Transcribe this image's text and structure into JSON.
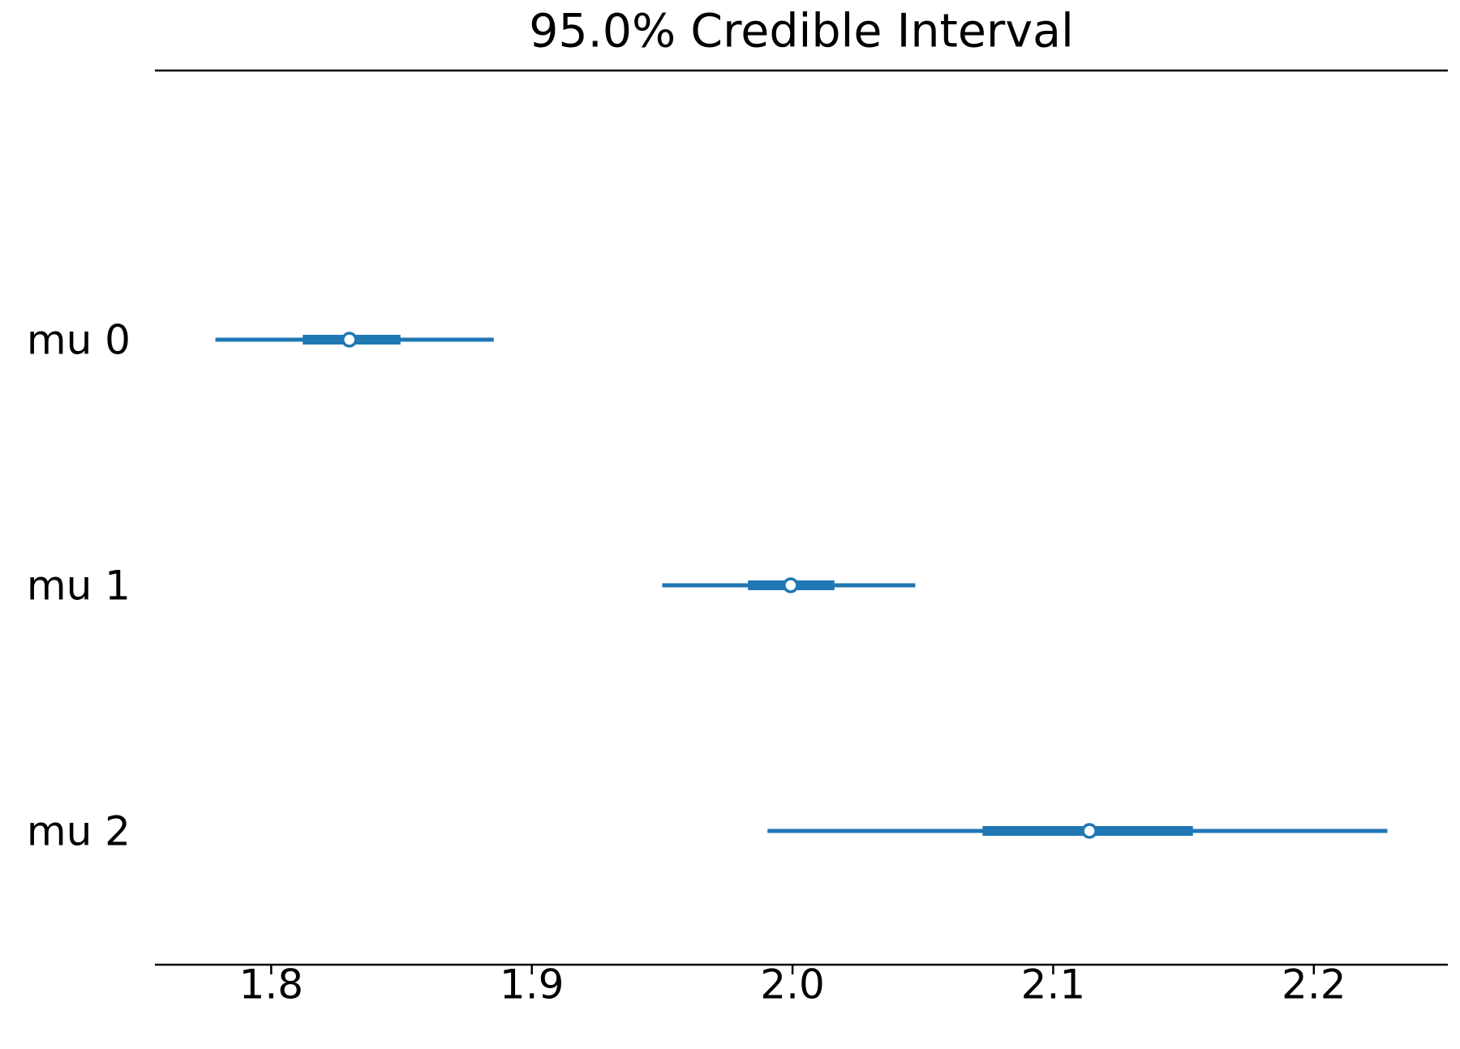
{
  "chart_data": {
    "type": "forest",
    "title": "95.0% Credible Interval",
    "categories": [
      "mu 0",
      "mu 1",
      "mu 2"
    ],
    "hdi_low": [
      1.7786,
      1.95,
      1.9904
    ],
    "hdi_high": [
      1.8854,
      2.0471,
      2.2282
    ],
    "iqr_low": [
      1.8121,
      1.9829,
      2.0729
    ],
    "iqr_high": [
      1.8496,
      2.0161,
      2.1536
    ],
    "values": [
      1.83,
      1.9993,
      2.1139
    ],
    "color": "#1f77b4",
    "xlim": [
      1.7554,
      2.2514
    ],
    "xticks": [
      1.8,
      1.9,
      {
        "value": 2.0,
        "label": "2.0"
      },
      2.1,
      2.2
    ]
  }
}
